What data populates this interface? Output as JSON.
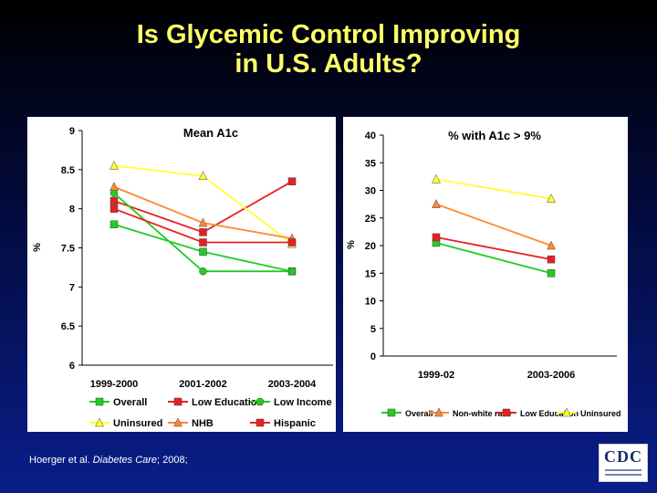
{
  "title_line1": "Is Glycemic Control Improving",
  "title_line2": "in U.S. Adults?",
  "citation_authors": "Hoerger et al.",
  "citation_journal": "Diabetes Care",
  "citation_rest": "; 2008;",
  "logo_text": "CDC",
  "colors": {
    "background_top": "#000000",
    "background_bottom": "#0a1e8a",
    "title": "#ffff66",
    "green": "#22cc22",
    "red": "#e82020",
    "yellow": "#ffff33",
    "orange": "#ff8833"
  },
  "chart_data": [
    {
      "type": "line",
      "title": "Mean A1c",
      "xlabel": "",
      "ylabel": "%",
      "categories": [
        "1999-2000",
        "2001-2002",
        "2003-2004"
      ],
      "ylim": [
        6,
        9
      ],
      "yticks": [
        "9",
        "8.5",
        "8",
        "7.5",
        "7",
        "6.5",
        "6"
      ],
      "ytick_values": [
        9,
        8.5,
        8,
        7.5,
        7,
        6.5,
        6
      ],
      "legend_position": "bottom",
      "series": [
        {
          "name": "Overall",
          "color": "#22cc22",
          "marker": "square",
          "values": [
            7.8,
            7.45,
            7.2
          ]
        },
        {
          "name": "Low Education",
          "color": "#e82020",
          "marker": "square",
          "values": [
            8.1,
            7.7,
            8.35
          ]
        },
        {
          "name": "Low Income",
          "color": "#22cc22",
          "marker": "circle",
          "values": [
            8.2,
            7.2,
            7.2
          ]
        },
        {
          "name": "Uninsured",
          "color": "#ffff33",
          "marker": "triangle",
          "values": [
            8.55,
            8.42,
            7.55
          ]
        },
        {
          "name": "NHB",
          "color": "#ff8833",
          "marker": "triangle",
          "values": [
            8.28,
            7.82,
            7.62
          ]
        },
        {
          "name": "Hispanic",
          "color": "#e82020",
          "marker": "square",
          "values": [
            8.0,
            7.57,
            7.57
          ]
        }
      ]
    },
    {
      "type": "line",
      "title": "% with A1c > 9%",
      "xlabel": "",
      "ylabel": "%",
      "categories": [
        "1999-02",
        "2003-2006"
      ],
      "ylim": [
        0,
        40
      ],
      "yticks": [
        "40",
        "35",
        "30",
        "25",
        "20",
        "15",
        "10",
        "5",
        "0"
      ],
      "ytick_values": [
        40,
        35,
        30,
        25,
        20,
        15,
        10,
        5,
        0
      ],
      "legend_position": "bottom",
      "series": [
        {
          "name": "Overall",
          "color": "#22cc22",
          "marker": "square",
          "values": [
            20.5,
            15
          ]
        },
        {
          "name": "Non-white race",
          "color": "#ff8833",
          "marker": "triangle",
          "values": [
            27.5,
            20
          ]
        },
        {
          "name": "Low Education",
          "color": "#e82020",
          "marker": "square",
          "values": [
            21.5,
            17.5
          ]
        },
        {
          "name": "Uninsured",
          "color": "#ffff33",
          "marker": "triangle",
          "values": [
            32,
            28.5
          ]
        }
      ]
    }
  ]
}
